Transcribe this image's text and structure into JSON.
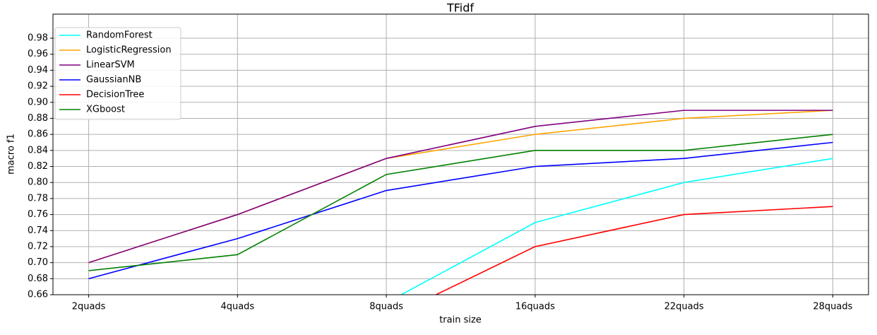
{
  "chart_data": {
    "type": "line",
    "title": "TFidf",
    "x_label": "train size",
    "y_label": "macro f1",
    "categories": [
      "2quads",
      "4quads",
      "8quads",
      "16quads",
      "22quads",
      "28quads"
    ],
    "series": [
      {
        "name": "RandomForest",
        "color": "#00ffff",
        "values": [
          null,
          null,
          0.65,
          0.75,
          0.8,
          0.83
        ]
      },
      {
        "name": "LogisticRegression",
        "color": "#ffa500",
        "values": [
          0.7,
          0.76,
          0.83,
          0.86,
          0.88,
          0.89
        ]
      },
      {
        "name": "LinearSVM",
        "color": "#800080",
        "values": [
          0.7,
          0.76,
          0.83,
          0.87,
          0.89,
          0.89
        ]
      },
      {
        "name": "GaussianNB",
        "color": "#0000ff",
        "values": [
          0.68,
          0.73,
          0.79,
          0.82,
          0.83,
          0.85
        ]
      },
      {
        "name": "DecisionTree",
        "color": "#ff0000",
        "values": [
          null,
          null,
          0.63,
          0.72,
          0.76,
          0.77
        ]
      },
      {
        "name": "XGboost",
        "color": "#008000",
        "values": [
          0.69,
          0.71,
          0.81,
          0.84,
          0.84,
          0.86
        ]
      }
    ],
    "ylim": [
      0.66,
      1.01
    ],
    "yticks": [
      0.66,
      0.68,
      {
        "value": 0.7,
        "label": "0.70"
      },
      0.72,
      0.74,
      0.76,
      0.78,
      {
        "value": 0.8,
        "label": "0.80"
      },
      0.82,
      0.84,
      0.86,
      0.88,
      {
        "value": 0.9,
        "label": "0.90"
      },
      0.92,
      0.94,
      0.96,
      0.98
    ],
    "grid": true,
    "legend": "upper left"
  }
}
